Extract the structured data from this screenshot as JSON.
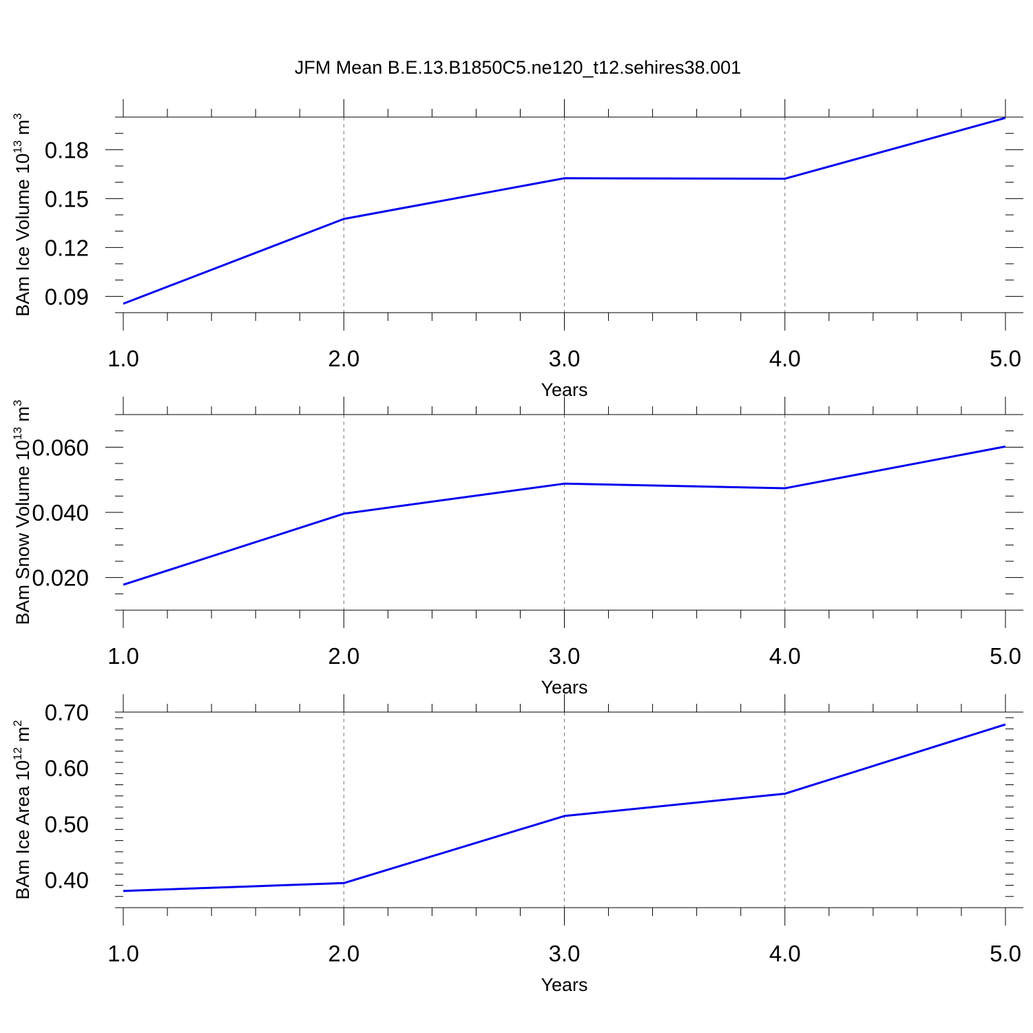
{
  "title": "JFM Mean B.E.13.B1850C5.ne120_t12.sehires38.001",
  "line_color": "#0000ee",
  "chart_data": [
    {
      "type": "line",
      "title": "JFM Mean B.E.13.B1850C5.ne120_t12.sehires38.001",
      "xlabel": "Years",
      "ylabel": {
        "text": "BAm Ice Volume 10",
        "exp1": "13",
        "unit": " m",
        "exp2": "3"
      },
      "x": [
        1.0,
        2.0,
        3.0,
        4.0,
        5.0
      ],
      "values": [
        0.0855,
        0.1375,
        0.1625,
        0.1622,
        0.1995
      ],
      "xlim": [
        1.0,
        5.0
      ],
      "ylim": [
        0.08,
        0.2
      ],
      "xticks": [
        1.0,
        2.0,
        3.0,
        4.0,
        5.0
      ],
      "xtick_labels": [
        "1.0",
        "2.0",
        "3.0",
        "4.0",
        "5.0"
      ],
      "yticks": [
        0.09,
        0.12,
        0.15,
        0.18
      ],
      "ytick_labels": [
        "0.09",
        "0.12",
        "0.15",
        "0.18"
      ],
      "yminor_step": 0.01
    },
    {
      "type": "line",
      "xlabel": "Years",
      "ylabel": {
        "text": "BAm Snow Volume 10",
        "exp1": "13",
        "unit": " m",
        "exp2": "3"
      },
      "x": [
        1.0,
        2.0,
        3.0,
        4.0,
        5.0
      ],
      "values": [
        0.0178,
        0.0396,
        0.0488,
        0.0474,
        0.0602
      ],
      "xlim": [
        1.0,
        5.0
      ],
      "ylim": [
        0.01,
        0.07
      ],
      "xticks": [
        1.0,
        2.0,
        3.0,
        4.0,
        5.0
      ],
      "xtick_labels": [
        "1.0",
        "2.0",
        "3.0",
        "4.0",
        "5.0"
      ],
      "yticks": [
        0.02,
        0.04,
        0.06
      ],
      "ytick_labels": [
        "0.020",
        "0.040",
        "0.060"
      ],
      "yminor_step": 0.005
    },
    {
      "type": "line",
      "xlabel": "Years",
      "ylabel": {
        "text": "BAm Ice Area 10",
        "exp1": "12",
        "unit": " m",
        "exp2": "2"
      },
      "x": [
        1.0,
        2.0,
        3.0,
        4.0,
        5.0
      ],
      "values": [
        0.38,
        0.394,
        0.514,
        0.554,
        0.678
      ],
      "xlim": [
        1.0,
        5.0
      ],
      "ylim": [
        0.35,
        0.7
      ],
      "xticks": [
        1.0,
        2.0,
        3.0,
        4.0,
        5.0
      ],
      "xtick_labels": [
        "1.0",
        "2.0",
        "3.0",
        "4.0",
        "5.0"
      ],
      "yticks": [
        0.4,
        0.5,
        0.6,
        0.7
      ],
      "ytick_labels": [
        "0.40",
        "0.50",
        "0.60",
        "0.70"
      ],
      "yminor_step": 0.02
    }
  ]
}
